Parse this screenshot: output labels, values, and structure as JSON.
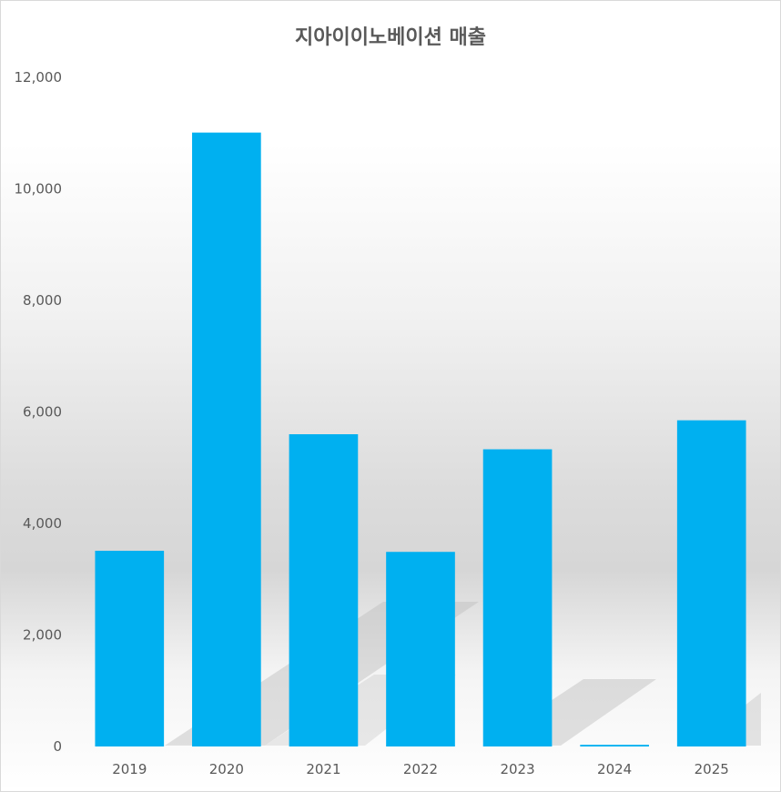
{
  "chart_data": {
    "type": "bar",
    "title": "지아이이노베이션 매출",
    "xlabel": "",
    "ylabel": "",
    "categories": [
      "2019",
      "2020",
      "2021",
      "2022",
      "2023",
      "2024",
      "2025"
    ],
    "values": [
      3510,
      11010,
      5600,
      3490,
      5330,
      30,
      5850
    ],
    "ylim": [
      0,
      12000
    ],
    "yticks": [
      0,
      2000,
      4000,
      6000,
      8000,
      10000,
      12000
    ],
    "ytick_labels": [
      "0",
      "2,000",
      "4,000",
      "6,000",
      "8,000",
      "10,000",
      "12,000"
    ],
    "grid": false,
    "legend": "none",
    "colors": {
      "bar": "#00b0f0",
      "text": "#595959",
      "shadow": "#b8b8b8"
    }
  }
}
